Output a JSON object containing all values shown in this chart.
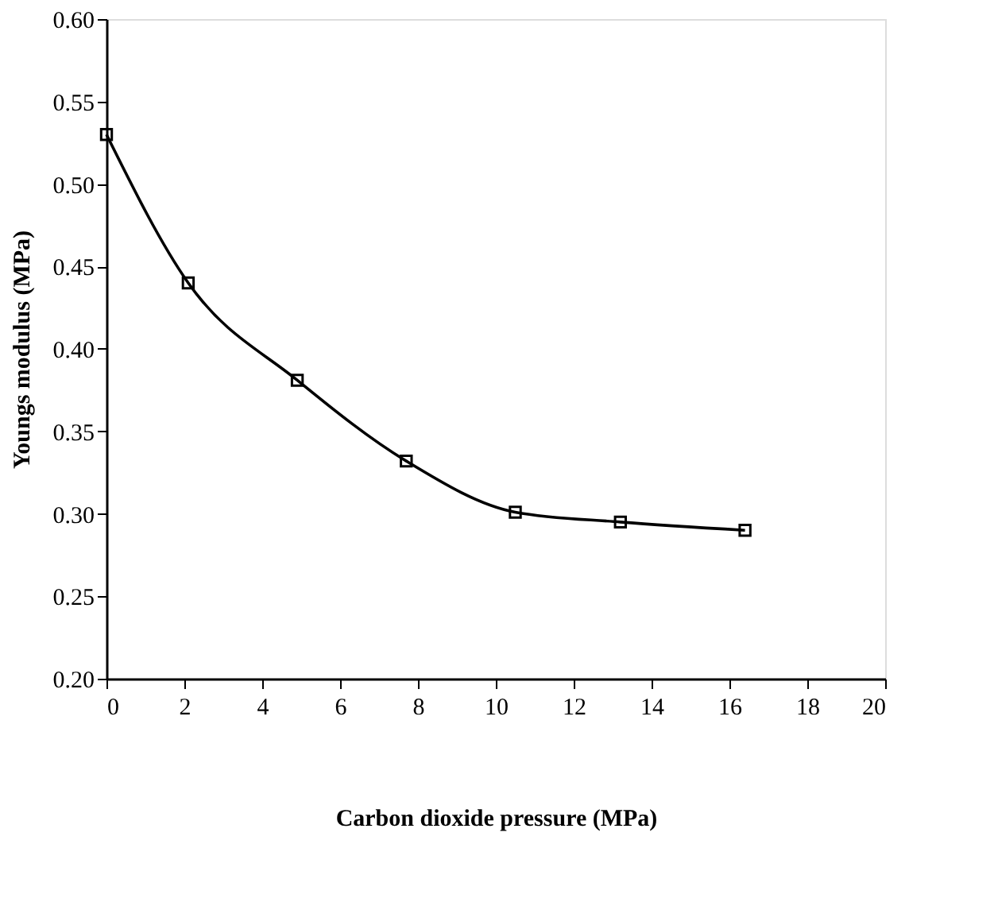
{
  "chart_data": {
    "type": "line",
    "xlabel": "Carbon dioxide pressure (MPa)",
    "ylabel": "Youngs modulus (MPa)",
    "x": [
      0,
      2.1,
      4.9,
      7.7,
      10.5,
      13.2,
      16.4
    ],
    "series": [
      {
        "color": "#000000",
        "values": [
          0.53,
          0.44,
          0.381,
          0.332,
          0.301,
          0.295,
          0.29
        ]
      }
    ],
    "xlim": [
      0,
      20
    ],
    "ylim": [
      0.2,
      0.6
    ],
    "xticks": [
      0,
      2,
      4,
      6,
      8,
      10,
      12,
      14,
      16,
      18,
      20
    ],
    "yticks": [
      {
        "value": 0.2,
        "label": "0.20"
      },
      {
        "value": 0.25,
        "label": "0.25"
      },
      {
        "value": 0.3,
        "label": "0.30"
      },
      {
        "value": 0.35,
        "label": "0.35"
      },
      {
        "value": 0.4,
        "label": "0.40"
      },
      {
        "value": 0.45,
        "label": "0.45"
      },
      {
        "value": 0.5,
        "label": "0.50"
      },
      {
        "value": 0.55,
        "label": "0.55"
      },
      {
        "value": 0.6,
        "label": "0.60"
      }
    ],
    "marker": "square",
    "line_style": "solid",
    "grid": false
  }
}
